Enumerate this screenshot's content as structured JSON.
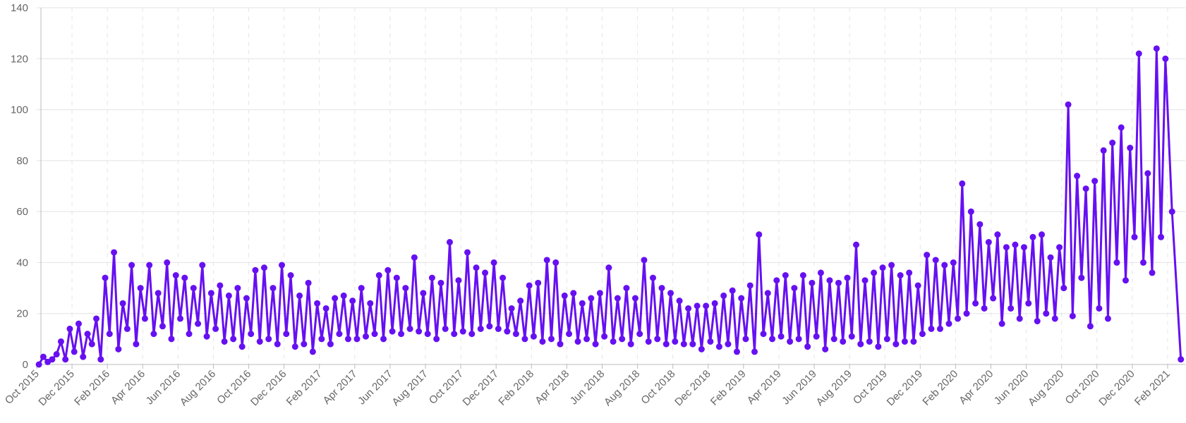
{
  "chart_data": {
    "type": "line",
    "color": "#6610f2",
    "grid": true,
    "ylim": [
      0,
      140
    ],
    "yticks": [
      0,
      20,
      40,
      60,
      80,
      100,
      120,
      140
    ],
    "xlim": [
      "2015-10",
      "2021-03"
    ],
    "xticks": [
      {
        "value": "2015-10",
        "label": "Oct 2015"
      },
      {
        "value": "2015-12",
        "label": "Dec 2015"
      },
      {
        "value": "2016-02",
        "label": "Feb 2016"
      },
      {
        "value": "2016-04",
        "label": "Apr 2016"
      },
      {
        "value": "2016-06",
        "label": "Jun 2016"
      },
      {
        "value": "2016-08",
        "label": "Aug 2016"
      },
      {
        "value": "2016-10",
        "label": "Oct 2016"
      },
      {
        "value": "2016-12",
        "label": "Dec 2016"
      },
      {
        "value": "2017-02",
        "label": "Feb 2017"
      },
      {
        "value": "2017-04",
        "label": "Apr 2017"
      },
      {
        "value": "2017-06",
        "label": "Jun 2017"
      },
      {
        "value": "2017-08",
        "label": "Aug 2017"
      },
      {
        "value": "2017-10",
        "label": "Oct 2017"
      },
      {
        "value": "2017-12",
        "label": "Dec 2017"
      },
      {
        "value": "2018-02",
        "label": "Feb 2018"
      },
      {
        "value": "2018-04",
        "label": "Apr 2018"
      },
      {
        "value": "2018-06",
        "label": "Jun 2018"
      },
      {
        "value": "2018-08",
        "label": "Aug 2018"
      },
      {
        "value": "2018-10",
        "label": "Oct 2018"
      },
      {
        "value": "2018-12",
        "label": "Dec 2018"
      },
      {
        "value": "2019-02",
        "label": "Feb 2019"
      },
      {
        "value": "2019-04",
        "label": "Apr 2019"
      },
      {
        "value": "2019-06",
        "label": "Jun 2019"
      },
      {
        "value": "2019-08",
        "label": "Aug 2019"
      },
      {
        "value": "2019-10",
        "label": "Oct 2019"
      },
      {
        "value": "2019-12",
        "label": "Dec 2019"
      },
      {
        "value": "2020-02",
        "label": "Feb 2020"
      },
      {
        "value": "2020-04",
        "label": "Apr 2020"
      },
      {
        "value": "2020-06",
        "label": "Jun 2020"
      },
      {
        "value": "2020-08",
        "label": "Aug 2020"
      },
      {
        "value": "2020-10",
        "label": "Oct 2020"
      },
      {
        "value": "2020-12",
        "label": "Dec 2020"
      },
      {
        "value": "2021-02",
        "label": "Feb 2021"
      }
    ],
    "x": [
      "2015-10",
      "2015-10",
      "2015-10",
      "2015-10",
      "2015-11",
      "2015-11",
      "2015-11",
      "2015-11",
      "2015-12",
      "2015-12",
      "2015-12",
      "2015-12",
      "2016-01",
      "2016-01",
      "2016-01",
      "2016-01",
      "2016-02",
      "2016-02",
      "2016-02",
      "2016-02",
      "2016-03",
      "2016-03",
      "2016-03",
      "2016-03",
      "2016-04",
      "2016-04",
      "2016-04",
      "2016-04",
      "2016-05",
      "2016-05",
      "2016-05",
      "2016-05",
      "2016-06",
      "2016-06",
      "2016-06",
      "2016-06",
      "2016-07",
      "2016-07",
      "2016-07",
      "2016-07",
      "2016-08",
      "2016-08",
      "2016-08",
      "2016-08",
      "2016-09",
      "2016-09",
      "2016-09",
      "2016-09",
      "2016-10",
      "2016-10",
      "2016-10",
      "2016-10",
      "2016-11",
      "2016-11",
      "2016-11",
      "2016-11",
      "2016-12",
      "2016-12",
      "2016-12",
      "2016-12",
      "2017-01",
      "2017-01",
      "2017-01",
      "2017-01",
      "2017-02",
      "2017-02",
      "2017-02",
      "2017-02",
      "2017-03",
      "2017-03",
      "2017-03",
      "2017-03",
      "2017-04",
      "2017-04",
      "2017-04",
      "2017-04",
      "2017-05",
      "2017-05",
      "2017-05",
      "2017-05",
      "2017-06",
      "2017-06",
      "2017-06",
      "2017-06",
      "2017-07",
      "2017-07",
      "2017-07",
      "2017-07",
      "2017-08",
      "2017-08",
      "2017-08",
      "2017-08",
      "2017-09",
      "2017-09",
      "2017-09",
      "2017-09",
      "2017-10",
      "2017-10",
      "2017-10",
      "2017-10",
      "2017-11",
      "2017-11",
      "2017-11",
      "2017-11",
      "2017-12",
      "2017-12",
      "2017-12",
      "2017-12",
      "2018-01",
      "2018-01",
      "2018-01",
      "2018-01",
      "2018-02",
      "2018-02",
      "2018-02",
      "2018-02",
      "2018-03",
      "2018-03",
      "2018-03",
      "2018-03",
      "2018-04",
      "2018-04",
      "2018-04",
      "2018-04",
      "2018-05",
      "2018-05",
      "2018-05",
      "2018-05",
      "2018-06",
      "2018-06",
      "2018-06",
      "2018-06",
      "2018-07",
      "2018-07",
      "2018-07",
      "2018-07",
      "2018-08",
      "2018-08",
      "2018-08",
      "2018-08",
      "2018-09",
      "2018-09",
      "2018-09",
      "2018-09",
      "2018-10",
      "2018-10",
      "2018-10",
      "2018-10",
      "2018-11",
      "2018-11",
      "2018-11",
      "2018-11",
      "2018-12",
      "2018-12",
      "2018-12",
      "2018-12",
      "2019-01",
      "2019-01",
      "2019-01",
      "2019-01",
      "2019-02",
      "2019-02",
      "2019-02",
      "2019-02",
      "2019-03",
      "2019-03",
      "2019-03",
      "2019-03",
      "2019-04",
      "2019-04",
      "2019-04",
      "2019-04",
      "2019-05",
      "2019-05",
      "2019-05",
      "2019-05",
      "2019-06",
      "2019-06",
      "2019-06",
      "2019-06",
      "2019-07",
      "2019-07",
      "2019-07",
      "2019-07",
      "2019-08",
      "2019-08",
      "2019-08",
      "2019-08",
      "2019-09",
      "2019-09",
      "2019-09",
      "2019-09",
      "2019-10",
      "2019-10",
      "2019-10",
      "2019-10",
      "2019-11",
      "2019-11",
      "2019-11",
      "2019-11",
      "2019-12",
      "2019-12",
      "2019-12",
      "2019-12",
      "2020-01",
      "2020-01",
      "2020-01",
      "2020-01",
      "2020-02",
      "2020-02",
      "2020-02",
      "2020-02",
      "2020-03",
      "2020-03",
      "2020-03",
      "2020-03",
      "2020-04",
      "2020-04",
      "2020-04",
      "2020-04",
      "2020-05",
      "2020-05",
      "2020-05",
      "2020-05",
      "2020-06",
      "2020-06",
      "2020-06",
      "2020-06",
      "2020-07",
      "2020-07",
      "2020-07",
      "2020-07",
      "2020-08",
      "2020-08",
      "2020-08",
      "2020-08",
      "2020-09",
      "2020-09",
      "2020-09",
      "2020-09",
      "2020-10",
      "2020-10",
      "2020-10",
      "2020-10",
      "2020-11",
      "2020-11",
      "2020-11",
      "2020-11",
      "2020-12",
      "2020-12",
      "2020-12",
      "2020-12",
      "2021-01",
      "2021-01",
      "2021-01",
      "2021-01",
      "2021-02",
      "2021-02"
    ],
    "values": [
      0,
      3,
      1,
      2,
      4,
      9,
      2,
      14,
      5,
      16,
      3,
      12,
      8,
      18,
      2,
      34,
      12,
      44,
      6,
      24,
      14,
      39,
      8,
      30,
      18,
      39,
      12,
      28,
      15,
      40,
      10,
      35,
      18,
      34,
      12,
      30,
      16,
      39,
      11,
      28,
      14,
      31,
      9,
      27,
      10,
      30,
      7,
      26,
      12,
      37,
      9,
      38,
      10,
      30,
      8,
      39,
      12,
      35,
      7,
      27,
      8,
      32,
      5,
      24,
      10,
      22,
      8,
      26,
      12,
      27,
      10,
      25,
      10,
      30,
      11,
      24,
      12,
      35,
      10,
      37,
      13,
      34,
      12,
      30,
      14,
      42,
      13,
      28,
      12,
      34,
      10,
      32,
      14,
      48,
      12,
      33,
      13,
      44,
      12,
      38,
      14,
      36,
      15,
      40,
      14,
      34,
      13,
      22,
      12,
      25,
      10,
      31,
      11,
      32,
      9,
      41,
      10,
      40,
      8,
      27,
      12,
      28,
      9,
      24,
      10,
      26,
      8,
      28,
      11,
      38,
      9,
      26,
      10,
      30,
      8,
      26,
      12,
      41,
      9,
      34,
      10,
      30,
      8,
      28,
      9,
      25,
      8,
      22,
      8,
      23,
      6,
      23,
      9,
      24,
      7,
      27,
      8,
      29,
      5,
      26,
      10,
      31,
      5,
      51,
      12,
      28,
      10,
      33,
      11,
      35,
      9,
      30,
      10,
      35,
      7,
      32,
      11,
      36,
      6,
      33,
      10,
      32,
      9,
      34,
      11,
      47,
      8,
      33,
      9,
      36,
      7,
      38,
      10,
      39,
      8,
      35,
      9,
      36,
      9,
      31,
      12,
      43,
      14,
      41,
      14,
      39,
      16,
      40,
      18,
      71,
      20,
      60,
      24,
      55,
      22,
      48,
      26,
      51,
      16,
      46,
      22,
      47,
      18,
      46,
      24,
      50,
      17,
      51,
      20,
      42,
      18,
      46,
      30,
      102,
      19,
      74,
      34,
      69,
      15,
      72,
      22,
      84,
      18,
      87,
      40,
      93,
      33,
      85,
      50,
      122,
      40,
      75,
      36,
      124,
      50,
      120,
      60,
      2
    ]
  }
}
